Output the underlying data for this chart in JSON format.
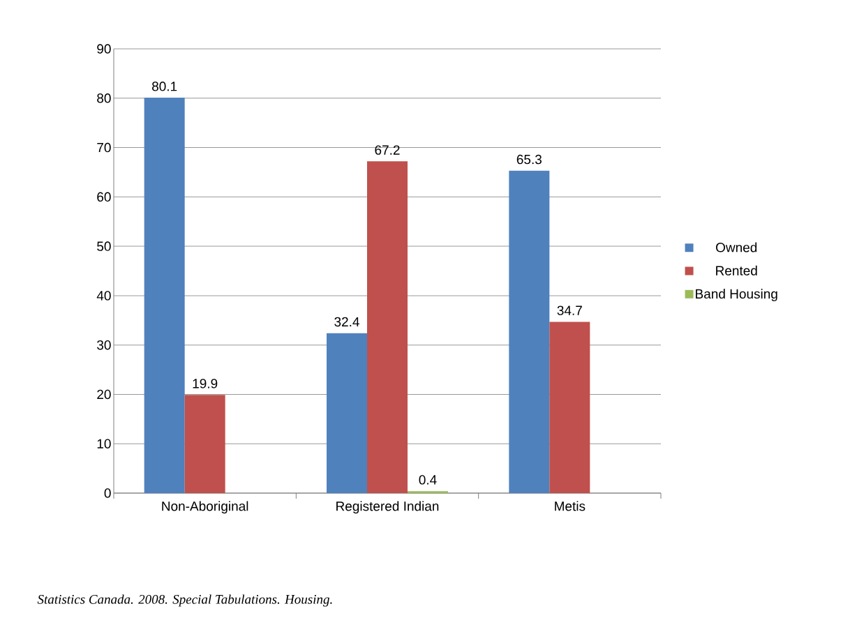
{
  "chart_data": {
    "type": "bar",
    "categories": [
      "Non-Aboriginal",
      "Registered Indian",
      "Metis"
    ],
    "series": [
      {
        "name": "Owned",
        "color": "#4f81bd",
        "values": [
          80.1,
          32.4,
          65.3
        ]
      },
      {
        "name": "Rented",
        "color": "#c0504d",
        "values": [
          19.9,
          67.2,
          34.7
        ]
      },
      {
        "name": "Band Housing",
        "color": "#9bbb59",
        "values": [
          null,
          0.4,
          null
        ]
      }
    ],
    "ylim": [
      0,
      90
    ],
    "yticks": [
      0,
      10,
      20,
      30,
      40,
      50,
      60,
      70,
      80,
      90
    ],
    "grid": "y",
    "legend": "right",
    "data_labels": true,
    "annotations": [
      "Statistics Canada. 2008. Special Tabulations. Housing."
    ]
  }
}
